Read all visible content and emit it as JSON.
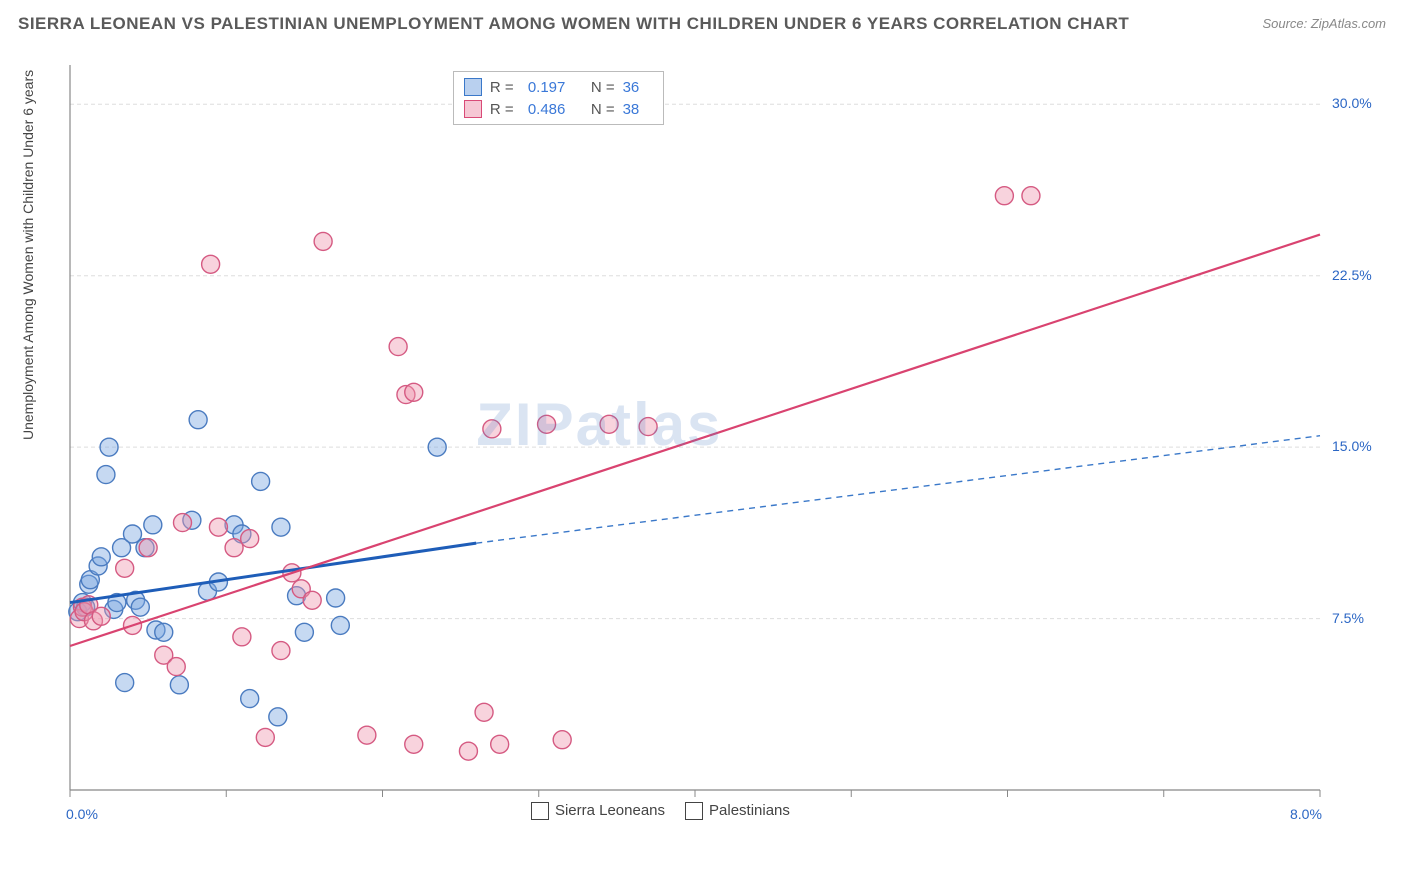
{
  "title": "SIERRA LEONEAN VS PALESTINIAN UNEMPLOYMENT AMONG WOMEN WITH CHILDREN UNDER 6 YEARS CORRELATION CHART",
  "source": "Source: ZipAtlas.com",
  "y_axis_label": "Unemployment Among Women with Children Under 6 years",
  "watermark": "ZIPatlas",
  "chart": {
    "type": "scatter",
    "x_min": 0.0,
    "x_max": 8.0,
    "y_min": 0.0,
    "y_max": 31.5,
    "x_tick_left": "0.0%",
    "x_tick_right": "8.0%",
    "y_ticks": [
      {
        "value": 7.5,
        "label": "7.5%"
      },
      {
        "value": 15.0,
        "label": "15.0%"
      },
      {
        "value": 22.5,
        "label": "22.5%"
      },
      {
        "value": 30.0,
        "label": "30.0%"
      }
    ],
    "grid_color": "#dddddd",
    "axis_color": "#888888",
    "background": "#ffffff",
    "marker_radius": 9,
    "marker_stroke_width": 1.4,
    "series": [
      {
        "name": "Sierra Leoneans",
        "fill": "rgba(120,165,225,0.42)",
        "stroke": "#4a7bc0",
        "points": [
          [
            0.05,
            7.8
          ],
          [
            0.08,
            8.2
          ],
          [
            0.1,
            8.0
          ],
          [
            0.12,
            9.0
          ],
          [
            0.13,
            9.2
          ],
          [
            0.18,
            9.8
          ],
          [
            0.2,
            10.2
          ],
          [
            0.23,
            13.8
          ],
          [
            0.25,
            15.0
          ],
          [
            0.28,
            7.9
          ],
          [
            0.3,
            8.2
          ],
          [
            0.33,
            10.6
          ],
          [
            0.35,
            4.7
          ],
          [
            0.4,
            11.2
          ],
          [
            0.42,
            8.3
          ],
          [
            0.45,
            8.0
          ],
          [
            0.48,
            10.6
          ],
          [
            0.53,
            11.6
          ],
          [
            0.55,
            7.0
          ],
          [
            0.6,
            6.9
          ],
          [
            0.7,
            4.6
          ],
          [
            0.78,
            11.8
          ],
          [
            0.82,
            16.2
          ],
          [
            0.88,
            8.7
          ],
          [
            0.95,
            9.1
          ],
          [
            1.05,
            11.6
          ],
          [
            1.1,
            11.2
          ],
          [
            1.15,
            4.0
          ],
          [
            1.22,
            13.5
          ],
          [
            1.33,
            3.2
          ],
          [
            1.35,
            11.5
          ],
          [
            1.45,
            8.5
          ],
          [
            1.5,
            6.9
          ],
          [
            1.7,
            8.4
          ],
          [
            1.73,
            7.2
          ],
          [
            2.35,
            15.0
          ]
        ],
        "trend": {
          "x1": 0.0,
          "y1": 8.2,
          "x2": 2.6,
          "y2": 10.8,
          "solid_color": "#1e5db8",
          "solid_width": 3,
          "dash_x1": 2.6,
          "dash_y1": 10.8,
          "dash_x2": 8.0,
          "dash_y2": 15.5,
          "dash_color": "#3a78c9"
        }
      },
      {
        "name": "Palestinians",
        "fill": "rgba(238,150,175,0.42)",
        "stroke": "#d55a82",
        "points": [
          [
            0.06,
            7.5
          ],
          [
            0.08,
            8.0
          ],
          [
            0.09,
            7.8
          ],
          [
            0.12,
            8.1
          ],
          [
            0.15,
            7.4
          ],
          [
            0.2,
            7.6
          ],
          [
            0.35,
            9.7
          ],
          [
            0.4,
            7.2
          ],
          [
            0.5,
            10.6
          ],
          [
            0.6,
            5.9
          ],
          [
            0.68,
            5.4
          ],
          [
            0.72,
            11.7
          ],
          [
            0.9,
            23.0
          ],
          [
            0.95,
            11.5
          ],
          [
            1.05,
            10.6
          ],
          [
            1.1,
            6.7
          ],
          [
            1.15,
            11.0
          ],
          [
            1.25,
            2.3
          ],
          [
            1.35,
            6.1
          ],
          [
            1.42,
            9.5
          ],
          [
            1.48,
            8.8
          ],
          [
            1.55,
            8.3
          ],
          [
            1.62,
            24.0
          ],
          [
            1.9,
            2.4
          ],
          [
            2.1,
            19.4
          ],
          [
            2.15,
            17.3
          ],
          [
            2.2,
            17.4
          ],
          [
            2.2,
            2.0
          ],
          [
            2.55,
            1.7
          ],
          [
            2.65,
            3.4
          ],
          [
            2.7,
            15.8
          ],
          [
            2.75,
            2.0
          ],
          [
            3.05,
            16.0
          ],
          [
            3.15,
            2.2
          ],
          [
            3.45,
            16.0
          ],
          [
            3.7,
            15.9
          ],
          [
            5.98,
            26.0
          ],
          [
            6.15,
            26.0
          ]
        ],
        "trend": {
          "x1": 0.0,
          "y1": 6.3,
          "x2": 8.0,
          "y2": 24.3,
          "solid_color": "#d94370",
          "solid_width": 2.2
        }
      }
    ]
  },
  "legend_top": {
    "rows": [
      {
        "series": "blue",
        "r_label": "R =",
        "r": "0.197",
        "n_label": "N =",
        "n": "36"
      },
      {
        "series": "pink",
        "r_label": "R =",
        "r": "0.486",
        "n_label": "N =",
        "n": "38"
      }
    ]
  },
  "legend_bottom": {
    "items": [
      {
        "series": "blue",
        "label": "Sierra Leoneans"
      },
      {
        "series": "pink",
        "label": "Palestinians"
      }
    ]
  }
}
